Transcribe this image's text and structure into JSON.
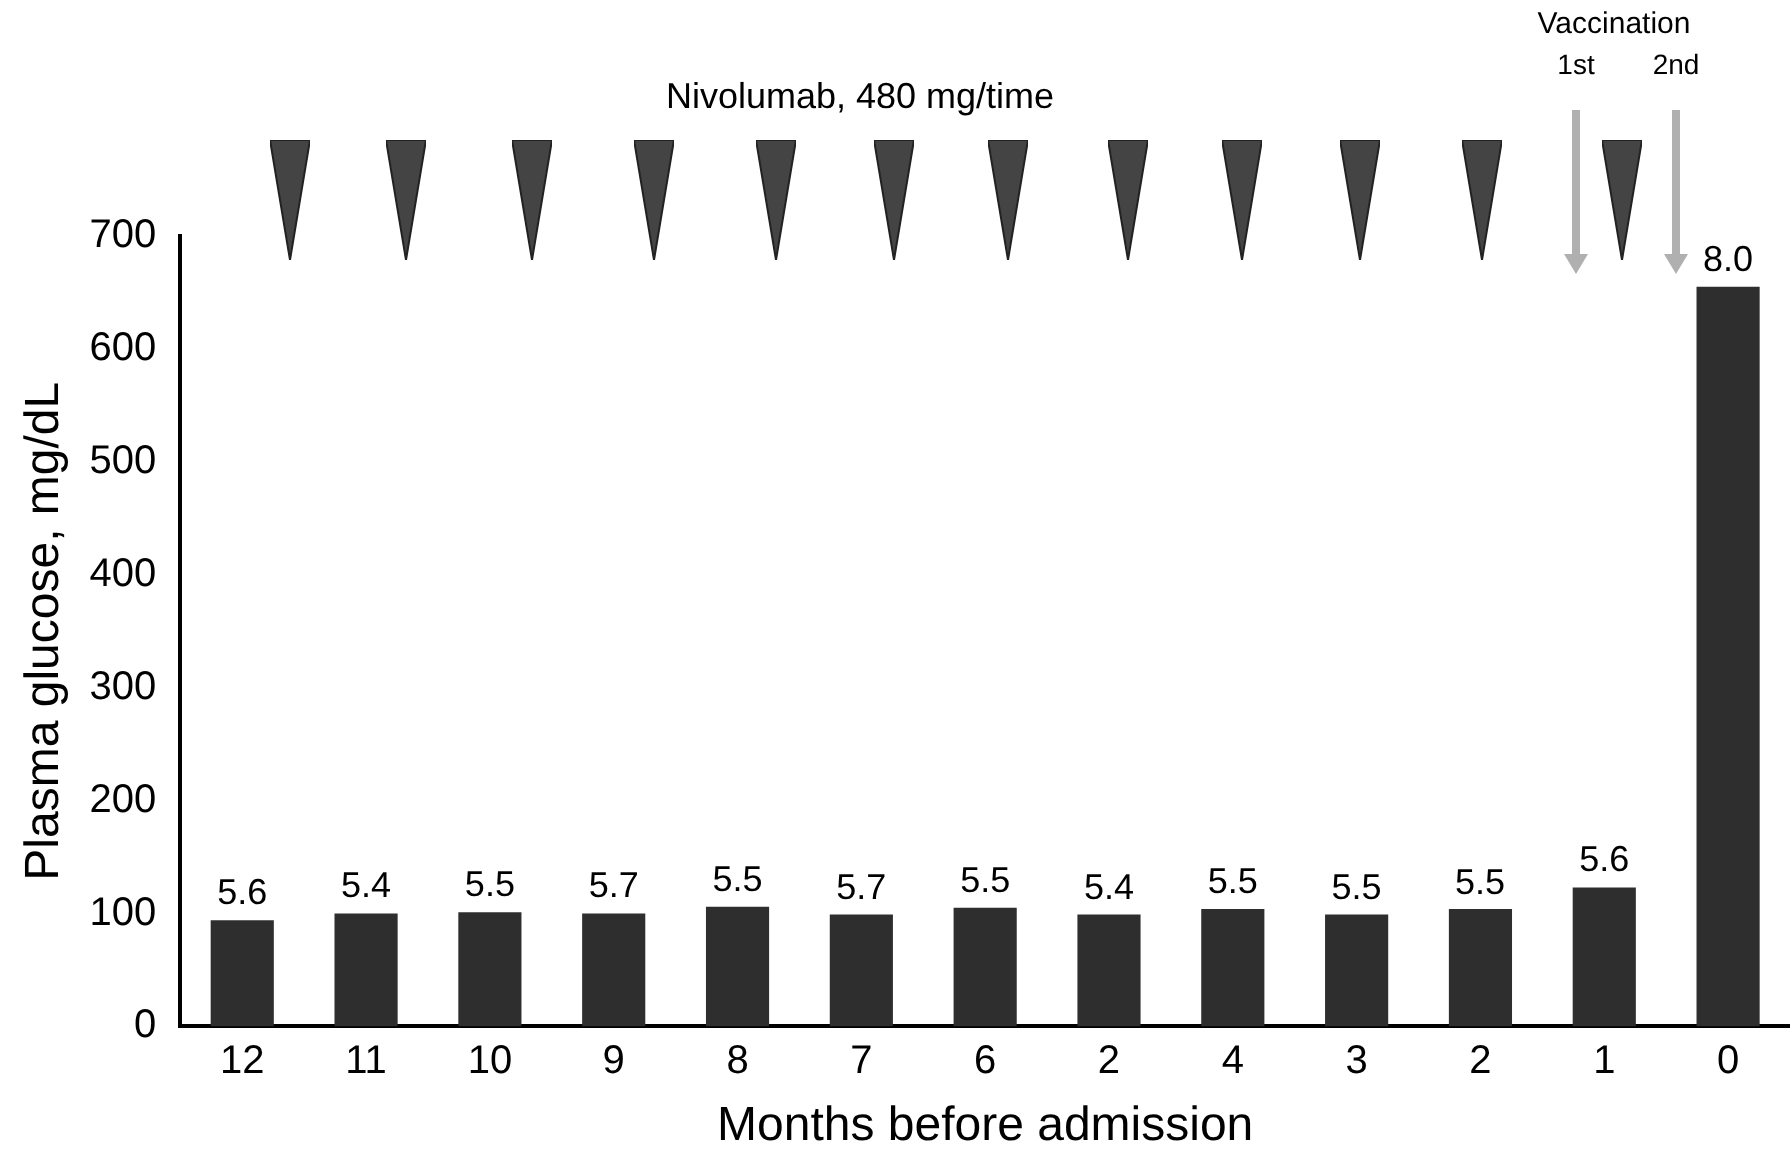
{
  "chart_data": {
    "type": "bar",
    "xlabel": "Months before admission",
    "ylabel": "Plasma glucose, mg/dL",
    "categories": [
      "12",
      "11",
      "10",
      "9",
      "8",
      "7",
      "6",
      "2",
      "4",
      "3",
      "2",
      "1",
      "0"
    ],
    "values": [
      94,
      100,
      101,
      100,
      106,
      99,
      105,
      99,
      104,
      99,
      104,
      123,
      655
    ],
    "color": "#2e2e2e",
    "ylim": [
      0,
      700
    ],
    "yticks": [
      0,
      100,
      200,
      300,
      400,
      500,
      600,
      700
    ],
    "grid": false,
    "legend": false,
    "annotations": [
      "Nivolumab, 480 mg/time",
      "Vaccination",
      "1st",
      "2nd",
      {
        "text": "5.6",
        "x": "12",
        "y": 94
      },
      {
        "text": "5.4",
        "x": "11",
        "y": 100
      },
      {
        "text": "5.5",
        "x": "10",
        "y": 101
      },
      {
        "text": "5.7",
        "x": "9",
        "y": 100
      },
      {
        "text": "5.5",
        "x": "8",
        "y": 106
      },
      {
        "text": "5.7",
        "x": "7",
        "y": 99
      },
      {
        "text": "5.5",
        "x": "6",
        "y": 105
      },
      {
        "text": "5.4",
        "x": "2",
        "y": 99
      },
      {
        "text": "5.5",
        "x": "4",
        "y": 104
      },
      {
        "text": "5.5",
        "x": "3",
        "y": 99
      },
      "5.5",
      {
        "text": "5.6",
        "x": "1",
        "y": 123
      },
      {
        "text": "8.0",
        "x": "0",
        "y": 655
      }
    ]
  }
}
